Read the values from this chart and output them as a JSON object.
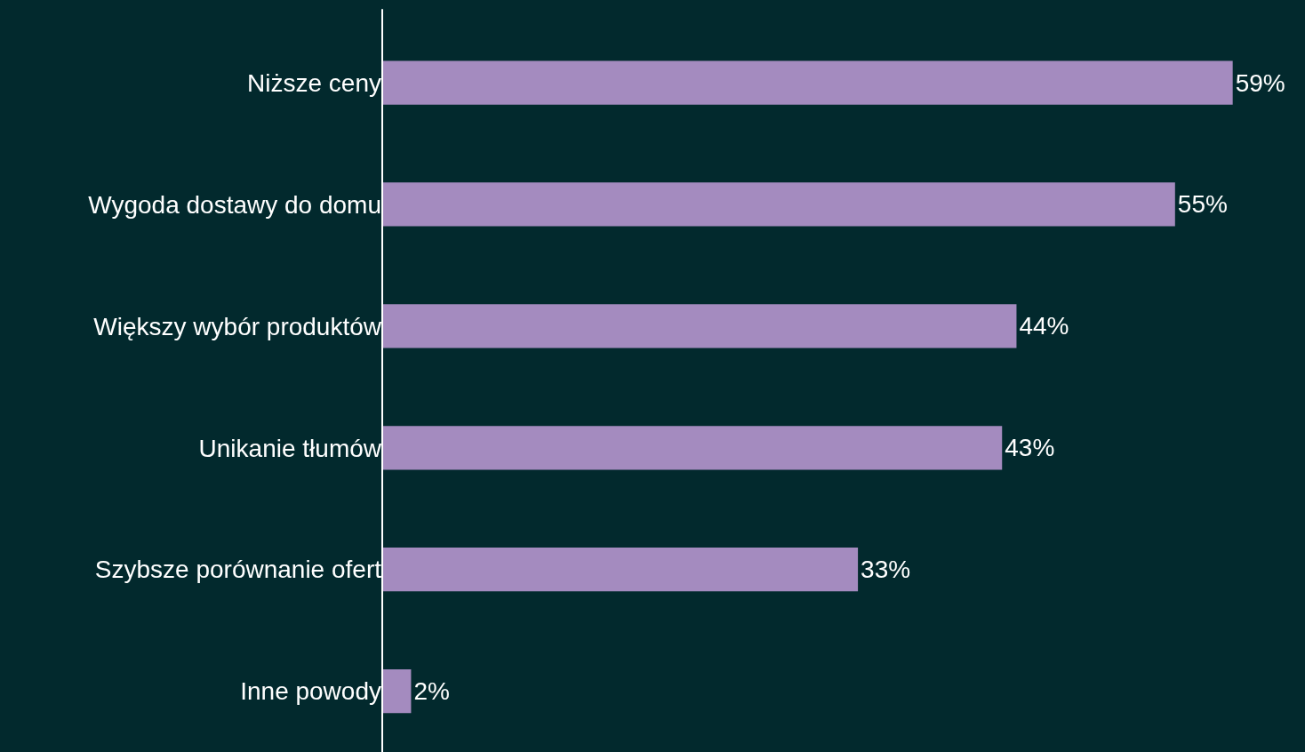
{
  "chart_data": {
    "type": "bar",
    "orientation": "horizontal",
    "categories": [
      "Niższe ceny",
      "Wygoda dostawy do domu",
      "Większy wybór produktów",
      "Unikanie tłumów",
      "Szybsze porównanie ofert",
      "Inne powody"
    ],
    "values": [
      59,
      55,
      44,
      43,
      33,
      2
    ],
    "value_labels": [
      "59%",
      "55%",
      "44%",
      "43%",
      "33%",
      "2%"
    ],
    "color": "#a48bbf"
  }
}
